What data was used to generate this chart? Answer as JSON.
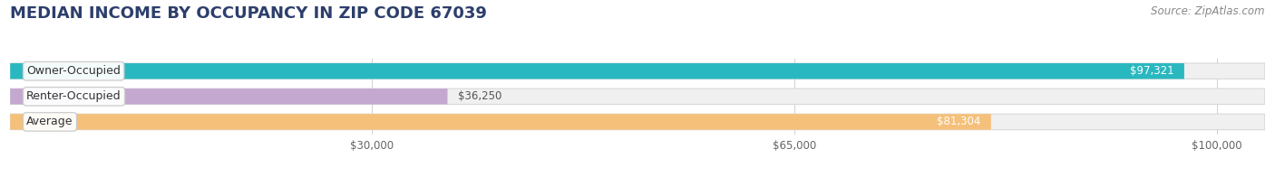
{
  "title": "MEDIAN INCOME BY OCCUPANCY IN ZIP CODE 67039",
  "source": "Source: ZipAtlas.com",
  "categories": [
    "Owner-Occupied",
    "Renter-Occupied",
    "Average"
  ],
  "values": [
    97321,
    36250,
    81304
  ],
  "bar_colors": [
    "#2ab8c0",
    "#c4a8d0",
    "#f5c07a"
  ],
  "bar_labels": [
    "$97,321",
    "$36,250",
    "$81,304"
  ],
  "x_ticks": [
    30000,
    65000,
    100000
  ],
  "x_tick_labels": [
    "$30,000",
    "$65,000",
    "$100,000"
  ],
  "xlim_max": 104000,
  "background_color": "#ffffff",
  "bar_bg_color": "#f0f0f0",
  "title_fontsize": 13,
  "source_fontsize": 8.5,
  "label_fontsize": 9,
  "value_fontsize": 8.5,
  "bar_height": 0.62,
  "title_color": "#2c3e6b",
  "source_color": "#888888",
  "label_color": "#333333",
  "tick_color": "#666666"
}
